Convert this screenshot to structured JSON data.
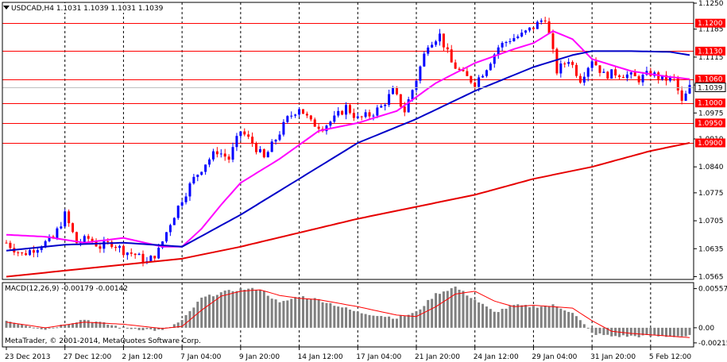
{
  "chart_data": {
    "type": "candlestick",
    "title": "USDCAD,H4  1.1031 1.1039 1.1031 1.1039",
    "price_axis": {
      "min": 1.0558,
      "max": 1.1252,
      "ticks": [
        "1.1250",
        "1.1185",
        "1.1115",
        "1.1045",
        "1.0975",
        "1.0910",
        "1.0840",
        "1.0775",
        "1.0705",
        "1.0635",
        "1.0565"
      ],
      "tick_values": [
        1.125,
        1.1185,
        1.1115,
        1.1045,
        1.0975,
        1.091,
        1.084,
        1.0775,
        1.0705,
        1.0635,
        1.0565
      ]
    },
    "horizontal_levels": [
      {
        "value": 1.12,
        "label": "1.1200"
      },
      {
        "value": 1.113,
        "label": "1.1130"
      },
      {
        "value": 1.106,
        "label": "1.1060"
      },
      {
        "value": 1.1,
        "label": "1.1000"
      },
      {
        "value": 1.095,
        "label": "1.0950"
      },
      {
        "value": 1.09,
        "label": "1.0900"
      }
    ],
    "current_price": {
      "value": 1.1039,
      "label": "1.1039"
    },
    "time_axis": {
      "labels": [
        "23 Dec 2013",
        "27 Dec 12:00",
        "2 Jan 12:00",
        "7 Jan 04:00",
        "9 Jan 20:00",
        "14 Jan 12:00",
        "17 Jan 04:00",
        "21 Jan 20:00",
        "24 Jan 12:00",
        "29 Jan 04:00",
        "31 Jan 20:00",
        "5 Feb 12:00"
      ],
      "label_bar_index": [
        0,
        15,
        30,
        45,
        60,
        75,
        90,
        105,
        120,
        135,
        150,
        165
      ]
    },
    "bar_count": 176,
    "anchors": {
      "index": [
        0,
        4,
        8,
        12,
        15,
        18,
        21,
        24,
        27,
        30,
        33,
        36,
        39,
        42,
        45,
        48,
        51,
        54,
        57,
        60,
        63,
        66,
        69,
        72,
        75,
        78,
        81,
        84,
        87,
        90,
        93,
        96,
        99,
        102,
        105,
        108,
        111,
        114,
        117,
        120,
        123,
        126,
        129,
        132,
        135,
        138,
        141,
        144,
        147,
        150,
        153,
        156,
        159,
        162,
        165,
        168,
        171,
        173,
        175
      ],
      "close": [
        1.065,
        1.062,
        1.064,
        1.066,
        1.072,
        1.065,
        1.066,
        1.064,
        1.065,
        1.063,
        1.062,
        1.06,
        1.063,
        1.07,
        1.076,
        1.081,
        1.085,
        1.088,
        1.086,
        1.093,
        1.09,
        1.086,
        1.091,
        1.096,
        1.099,
        1.095,
        1.094,
        1.096,
        1.099,
        1.096,
        1.097,
        1.099,
        1.103,
        1.098,
        1.106,
        1.115,
        1.117,
        1.11,
        1.107,
        1.105,
        1.109,
        1.114,
        1.116,
        1.117,
        1.119,
        1.1215,
        1.108,
        1.111,
        1.106,
        1.111,
        1.107,
        1.1075,
        1.107,
        1.106,
        1.1075,
        1.106,
        1.106,
        1.1,
        1.1039
      ]
    },
    "moving_averages": [
      {
        "color": "#ff00ff",
        "index": [
          0,
          10,
          20,
          30,
          40,
          45,
          50,
          55,
          60,
          70,
          80,
          90,
          100,
          110,
          120,
          130,
          135,
          140,
          145,
          150,
          160,
          170,
          175
        ],
        "value": [
          1.067,
          1.0665,
          1.065,
          1.0662,
          1.064,
          1.064,
          1.0685,
          1.0745,
          1.08,
          1.086,
          1.093,
          1.095,
          1.098,
          1.105,
          1.11,
          1.1135,
          1.115,
          1.118,
          1.116,
          1.111,
          1.108,
          1.1065,
          1.106
        ]
      },
      {
        "color": "#0000c8",
        "index": [
          0,
          15,
          30,
          45,
          60,
          75,
          90,
          105,
          120,
          135,
          145,
          150,
          160,
          170,
          175
        ],
        "value": [
          1.063,
          1.0645,
          1.065,
          1.064,
          1.072,
          1.081,
          1.09,
          1.096,
          1.103,
          1.109,
          1.112,
          1.113,
          1.113,
          1.1128,
          1.112
        ]
      },
      {
        "color": "#e60000",
        "index": [
          0,
          30,
          45,
          60,
          90,
          120,
          135,
          150,
          165,
          175
        ],
        "value": [
          1.0565,
          1.0595,
          1.061,
          1.064,
          1.071,
          1.077,
          1.081,
          1.084,
          1.088,
          1.09
        ]
      }
    ],
    "macd": {
      "label": "MACD(12,26,9) -0.00179 -0.00142",
      "axis_ticks": [
        "0.00557",
        "0.00",
        "-0.00215"
      ],
      "axis_values": [
        0.00557,
        0.0,
        -0.00215
      ],
      "histogram": {
        "index": [
          0,
          10,
          20,
          30,
          40,
          45,
          50,
          55,
          60,
          65,
          70,
          75,
          80,
          90,
          100,
          105,
          110,
          115,
          120,
          125,
          130,
          135,
          140,
          145,
          150,
          155,
          160,
          170,
          175
        ],
        "value": [
          0.001,
          -0.0002,
          0.0012,
          0.0,
          -0.0004,
          0.001,
          0.0042,
          0.005,
          0.0055,
          0.0055,
          0.0035,
          0.0045,
          0.004,
          0.0022,
          0.0014,
          0.0022,
          0.0048,
          0.0058,
          0.004,
          0.0022,
          0.0032,
          0.003,
          0.0032,
          0.0022,
          -0.0008,
          -0.0012,
          -0.0012,
          -0.0012,
          -0.0012
        ]
      },
      "signal": {
        "index": [
          0,
          10,
          20,
          30,
          40,
          45,
          50,
          55,
          60,
          65,
          70,
          75,
          80,
          90,
          100,
          105,
          110,
          115,
          120,
          125,
          130,
          135,
          140,
          145,
          150,
          155,
          160,
          170,
          175
        ],
        "value": [
          0.0008,
          0.0,
          0.0008,
          0.0005,
          -0.0001,
          0.0002,
          0.0025,
          0.0045,
          0.0052,
          0.0054,
          0.0046,
          0.0042,
          0.004,
          0.003,
          0.0018,
          0.0016,
          0.003,
          0.0048,
          0.0052,
          0.0038,
          0.003,
          0.0032,
          0.003,
          0.0028,
          0.001,
          -0.0005,
          -0.0008,
          -0.0012,
          -0.0014
        ]
      }
    },
    "copyright": "MetaTrader, © 2001-2014, MetaQuotes Software Corp.",
    "colors": {
      "bull": "#0000ff",
      "bear": "#ff0000",
      "grid": "#000000",
      "level_line": "#ff0000",
      "level_label_bg": "#ff0000",
      "current_label_bg": "#ffffff",
      "hist": "#808080",
      "signal": "#ff0000"
    }
  }
}
